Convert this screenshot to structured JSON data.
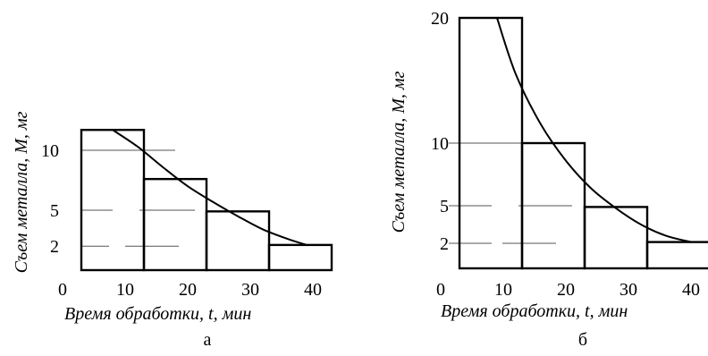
{
  "chart_data": [
    {
      "type": "bar",
      "panel_label": "а",
      "xlabel": "Время обработки, t, мин",
      "ylabel": "Съем металла, М, мг",
      "x_ticks": [
        0,
        10,
        20,
        30,
        40
      ],
      "y_ticks": [
        2,
        5,
        10
      ],
      "xlim": [
        0,
        44
      ],
      "ylim": [
        0,
        12.5
      ],
      "bars": [
        {
          "x0": 3,
          "x1": 13,
          "value": 11.7
        },
        {
          "x0": 13,
          "x1": 23,
          "value": 7.6
        },
        {
          "x0": 23,
          "x1": 33,
          "value": 4.9
        },
        {
          "x0": 33,
          "x1": 43,
          "value": 2.1
        }
      ],
      "curve": {
        "x": [
          8,
          12,
          16,
          20,
          24,
          28,
          32,
          36,
          39
        ],
        "y": [
          11.7,
          10.3,
          8.6,
          7.0,
          5.7,
          4.5,
          3.4,
          2.6,
          2.1
        ]
      },
      "reference_lines": [
        10,
        5,
        2
      ]
    },
    {
      "type": "bar",
      "panel_label": "б",
      "xlabel": "Время обработки, t, мин",
      "ylabel": "Съем металла, М, мг",
      "x_ticks": [
        0,
        10,
        20,
        30,
        40
      ],
      "y_ticks": [
        2,
        5,
        10,
        20
      ],
      "xlim": [
        0,
        44
      ],
      "ylim": [
        0,
        20
      ],
      "bars": [
        {
          "x0": 3,
          "x1": 13,
          "value": 20
        },
        {
          "x0": 13,
          "x1": 23,
          "value": 10
        },
        {
          "x0": 23,
          "x1": 33,
          "value": 4.9
        },
        {
          "x0": 33,
          "x1": 43,
          "value": 2.1
        }
      ],
      "curve": {
        "x": [
          9,
          12,
          16,
          20,
          24,
          28,
          32,
          36,
          40
        ],
        "y": [
          20,
          15.5,
          11.5,
          8.6,
          6.4,
          4.8,
          3.5,
          2.6,
          2.1
        ]
      },
      "reference_lines": [
        10,
        5,
        2
      ]
    }
  ]
}
